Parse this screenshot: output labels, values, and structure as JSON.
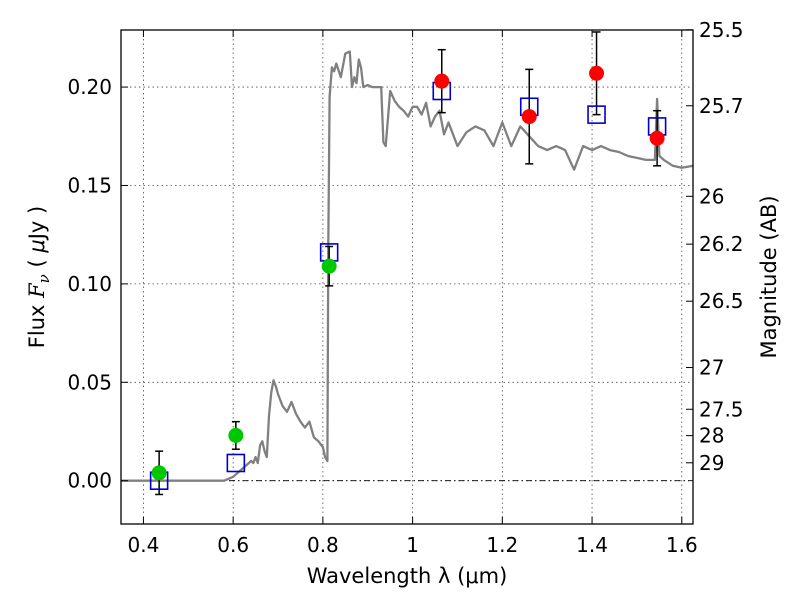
{
  "chart_data": {
    "type": "scatter",
    "xlabel": "Wavelength  λ (μm)",
    "ylabel_parts": [
      "Flux ",
      "F",
      "ν",
      " ( ",
      "μ",
      "Jy )"
    ],
    "ylabel_right": "Magnitude (AB)",
    "xlim": [
      0.35,
      1.625
    ],
    "ylim": [
      -0.022,
      0.229
    ],
    "x_ticks": [
      0.4,
      0.6,
      0.8,
      1.0,
      1.2,
      1.4,
      1.6
    ],
    "x_tick_labels": [
      "0.4",
      "0.6",
      "0.8",
      "1",
      "1.2",
      "1.4",
      "1.6"
    ],
    "y_ticks": [
      0.0,
      0.05,
      0.1,
      0.15,
      0.2
    ],
    "y_tick_labels": [
      "0.00",
      "0.05",
      "0.10",
      "0.15",
      "0.20"
    ],
    "right_ticks_flux": [
      0.2291,
      0.1905,
      0.1445,
      0.1202,
      0.0912,
      0.0575,
      0.0363,
      0.0229,
      0.0091
    ],
    "right_tick_labels": [
      "25.5",
      "25.7",
      "26",
      "26.2",
      "26.5",
      "27",
      "27.5",
      "28",
      "29"
    ],
    "grid": true,
    "colors": {
      "model": "#808080",
      "model_points": "#0000cc",
      "detections": "#00c800",
      "measurements": "#ff0000",
      "errorbars": "#000000",
      "zero_line": "#000000"
    },
    "model_spectrum": {
      "x": [
        0.35,
        0.58,
        0.6,
        0.62,
        0.63,
        0.64,
        0.645,
        0.65,
        0.655,
        0.66,
        0.665,
        0.67,
        0.675,
        0.68,
        0.685,
        0.69,
        0.695,
        0.7,
        0.71,
        0.72,
        0.73,
        0.74,
        0.75,
        0.76,
        0.77,
        0.78,
        0.79,
        0.8,
        0.805,
        0.81,
        0.812,
        0.815,
        0.82,
        0.825,
        0.83,
        0.84,
        0.85,
        0.86,
        0.865,
        0.87,
        0.875,
        0.88,
        0.885,
        0.89,
        0.9,
        0.91,
        0.92,
        0.93,
        0.935,
        0.94,
        0.95,
        0.96,
        0.97,
        0.98,
        0.99,
        1.0,
        1.01,
        1.02,
        1.03,
        1.04,
        1.05,
        1.06,
        1.07,
        1.08,
        1.09,
        1.1,
        1.12,
        1.14,
        1.16,
        1.18,
        1.2,
        1.22,
        1.24,
        1.26,
        1.28,
        1.3,
        1.32,
        1.34,
        1.36,
        1.38,
        1.4,
        1.42,
        1.44,
        1.46,
        1.48,
        1.5,
        1.52,
        1.54,
        1.545,
        1.55,
        1.56,
        1.58,
        1.6,
        1.625
      ],
      "y": [
        0.0,
        0.0,
        0.002,
        0.006,
        0.008,
        0.01,
        0.009,
        0.012,
        0.009,
        0.018,
        0.02,
        0.015,
        0.012,
        0.033,
        0.045,
        0.051,
        0.048,
        0.044,
        0.038,
        0.035,
        0.04,
        0.034,
        0.03,
        0.027,
        0.03,
        0.022,
        0.02,
        0.017,
        0.012,
        0.01,
        0.12,
        0.195,
        0.21,
        0.208,
        0.212,
        0.205,
        0.217,
        0.218,
        0.2,
        0.205,
        0.202,
        0.214,
        0.21,
        0.2,
        0.201,
        0.2,
        0.2,
        0.2,
        0.172,
        0.17,
        0.198,
        0.193,
        0.19,
        0.188,
        0.185,
        0.19,
        0.19,
        0.186,
        0.192,
        0.18,
        0.185,
        0.188,
        0.176,
        0.182,
        0.176,
        0.17,
        0.177,
        0.18,
        0.178,
        0.17,
        0.182,
        0.17,
        0.18,
        0.175,
        0.17,
        0.168,
        0.17,
        0.168,
        0.158,
        0.17,
        0.168,
        0.17,
        0.168,
        0.167,
        0.165,
        0.164,
        0.163,
        0.163,
        0.194,
        0.165,
        0.163,
        0.16,
        0.159,
        0.16
      ]
    },
    "model_points": {
      "x": [
        0.435,
        0.606,
        0.814,
        1.065,
        1.26,
        1.41,
        1.545
      ],
      "y": [
        0.0,
        0.009,
        0.116,
        0.198,
        0.19,
        0.186,
        0.18
      ]
    },
    "detections": {
      "x": [
        0.435,
        0.606,
        0.814
      ],
      "y": [
        0.004,
        0.023,
        0.109
      ],
      "yerr": [
        0.011,
        0.007,
        0.01
      ]
    },
    "measurements": {
      "x": [
        1.065,
        1.26,
        1.41,
        1.545
      ],
      "y": [
        0.203,
        0.185,
        0.207,
        0.174
      ],
      "yerr": [
        0.016,
        0.024,
        0.021,
        0.014
      ]
    }
  }
}
